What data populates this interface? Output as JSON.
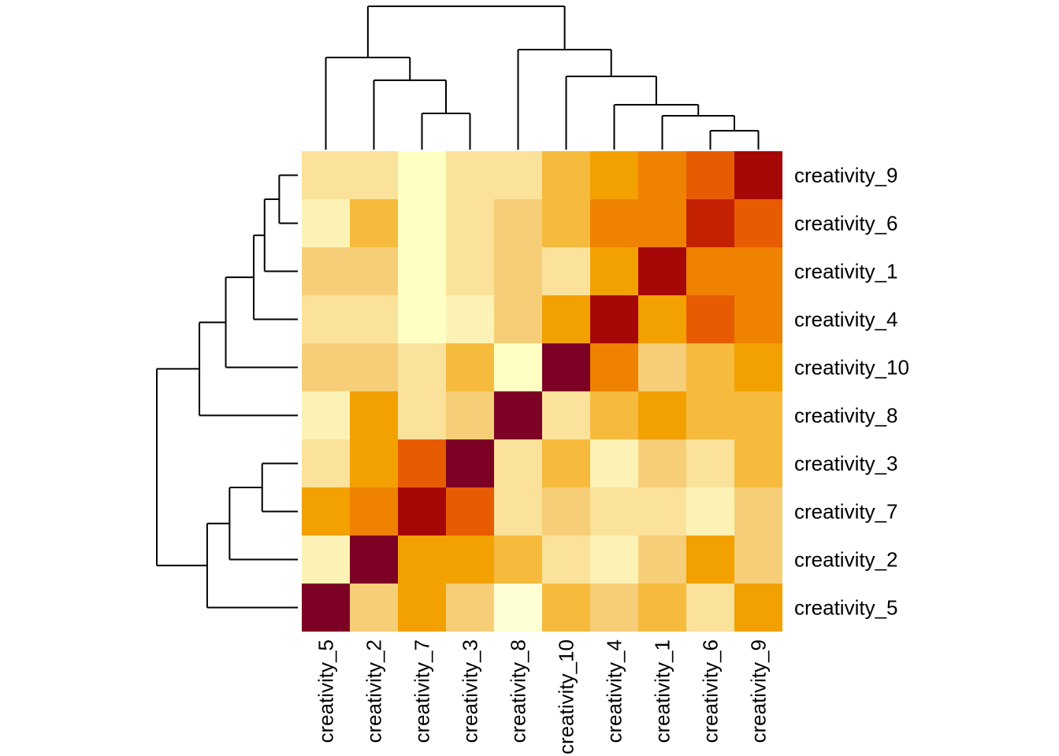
{
  "figure": {
    "background": "#ffffff",
    "line_color": "#000000",
    "text_color": "#000000"
  },
  "chart_data": {
    "type": "heatmap",
    "title": "",
    "description": "Clustered correlation heatmap of creativity items with row and column dendrograms (R heatmap style, YlOrRd palette)",
    "row_labels": [
      "creativity_9",
      "creativity_6",
      "creativity_1",
      "creativity_4",
      "creativity_10",
      "creativity_8",
      "creativity_3",
      "creativity_7",
      "creativity_2",
      "creativity_5"
    ],
    "col_labels": [
      "creativity_5",
      "creativity_2",
      "creativity_7",
      "creativity_3",
      "creativity_8",
      "creativity_10",
      "creativity_4",
      "creativity_1",
      "creativity_6",
      "creativity_9"
    ],
    "palette": [
      "#FFFFD6",
      "#FFFFC4",
      "#FCF2B5",
      "#FAE29A",
      "#F7CE78",
      "#F6BA3D",
      "#F3A001",
      "#EF8200",
      "#E75C00",
      "#C32100",
      "#A60808",
      "#7D0025"
    ],
    "palette_note": "index 1 = lowest (pale yellow), index 12 = highest (maroon)",
    "cells": [
      [
        4,
        4,
        2,
        4,
        4,
        6,
        7,
        8,
        9,
        11
      ],
      [
        3,
        6,
        2,
        4,
        5,
        6,
        8,
        8,
        10,
        9
      ],
      [
        5,
        5,
        2,
        4,
        5,
        4,
        7,
        11,
        8,
        8
      ],
      [
        4,
        4,
        2,
        3,
        5,
        7,
        11,
        7,
        9,
        8
      ],
      [
        5,
        5,
        4,
        6,
        2,
        12,
        8,
        5,
        6,
        7
      ],
      [
        3,
        7,
        4,
        5,
        12,
        4,
        6,
        7,
        6,
        6
      ],
      [
        4,
        7,
        9,
        12,
        4,
        6,
        3,
        5,
        4,
        6
      ],
      [
        7,
        8,
        11,
        9,
        4,
        5,
        4,
        4,
        3,
        5
      ],
      [
        3,
        12,
        7,
        7,
        6,
        4,
        3,
        5,
        7,
        5
      ],
      [
        12,
        5,
        7,
        5,
        1,
        6,
        5,
        6,
        4,
        7
      ]
    ],
    "col_dendrogram": {
      "h": 1.0,
      "c": [
        {
          "h": 0.643,
          "c": [
            {
              "leaf": 0
            },
            {
              "h": 0.484,
              "c": [
                {
                  "leaf": 1
                },
                {
                  "h": 0.253,
                  "c": [
                    {
                      "leaf": 2
                    },
                    {
                      "leaf": 3
                    }
                  ]
                }
              ]
            }
          ]
        },
        {
          "h": 0.698,
          "c": [
            {
              "leaf": 4
            },
            {
              "h": 0.511,
              "c": [
                {
                  "leaf": 5
                },
                {
                  "h": 0.313,
                  "c": [
                    {
                      "leaf": 6
                    },
                    {
                      "h": 0.236,
                      "c": [
                        {
                          "leaf": 7
                        },
                        {
                          "h": 0.132,
                          "c": [
                            {
                              "leaf": 8
                            },
                            {
                              "leaf": 9
                            }
                          ]
                        }
                      ]
                    }
                  ]
                }
              ]
            }
          ]
        }
      ]
    },
    "row_dendrogram": {
      "h": 1.0,
      "c": [
        {
          "h": 0.698,
          "c": [
            {
              "h": 0.511,
              "c": [
                {
                  "h": 0.313,
                  "c": [
                    {
                      "h": 0.236,
                      "c": [
                        {
                          "h": 0.132,
                          "c": [
                            {
                              "leaf": 0
                            },
                            {
                              "leaf": 1
                            }
                          ]
                        },
                        {
                          "leaf": 2
                        }
                      ]
                    },
                    {
                      "leaf": 3
                    }
                  ]
                },
                {
                  "leaf": 4
                }
              ]
            },
            {
              "leaf": 5
            }
          ]
        },
        {
          "h": 0.643,
          "c": [
            {
              "h": 0.484,
              "c": [
                {
                  "h": 0.253,
                  "c": [
                    {
                      "leaf": 6
                    },
                    {
                      "leaf": 7
                    }
                  ]
                },
                {
                  "leaf": 8
                }
              ]
            },
            {
              "leaf": 9
            }
          ]
        }
      ]
    }
  }
}
